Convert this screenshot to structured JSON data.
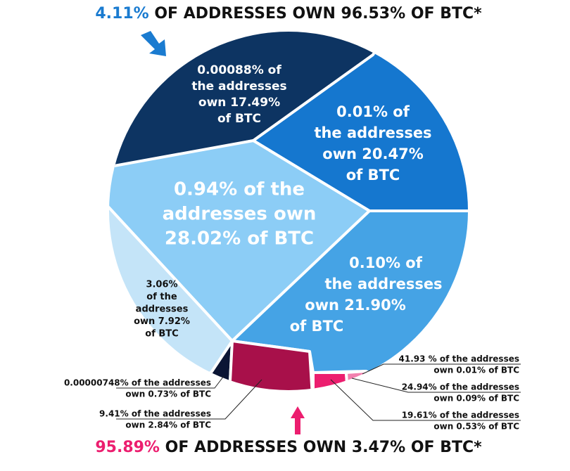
{
  "header": {
    "highlight": "4.11%",
    "text": "OF ADDRESSES OWN 96.53% OF BTC*"
  },
  "segments": [
    {
      "lines": [
        "0.00088% of",
        "the addresses",
        "own 17.49%",
        "of BTC"
      ]
    },
    {
      "lines": [
        "0.01% of",
        "the addresses",
        "own 20.47%",
        "of BTC"
      ]
    },
    {
      "lines": [
        "0.94% of the",
        "addresses own",
        "28.02% of BTC"
      ]
    },
    {
      "lines": [
        "0.10% of",
        "the addresses",
        "own 21.90%",
        "of BTC"
      ]
    },
    {
      "lines": [
        "3.06%",
        "of the",
        "addresses",
        "own 7.92%",
        "of BTC"
      ]
    }
  ],
  "callouts": [
    {
      "lines": [
        "0.00000748% of the addresses",
        "own 0.73% of BTC"
      ]
    },
    {
      "lines": [
        "9.41% of the addresses",
        "own 2.84% of BTC"
      ]
    },
    {
      "lines": [
        "41.93 % of the addresses",
        "own 0.01% of BTC"
      ]
    },
    {
      "lines": [
        "24.94% of the addresses",
        "own 0.09% of BTC"
      ]
    },
    {
      "lines": [
        "19.61% of the addresses",
        "own 0.53% of BTC"
      ]
    }
  ],
  "footer": {
    "highlight": "95.89%",
    "text": "OF ADDRESSES OWN 3.47% OF BTC*"
  }
}
